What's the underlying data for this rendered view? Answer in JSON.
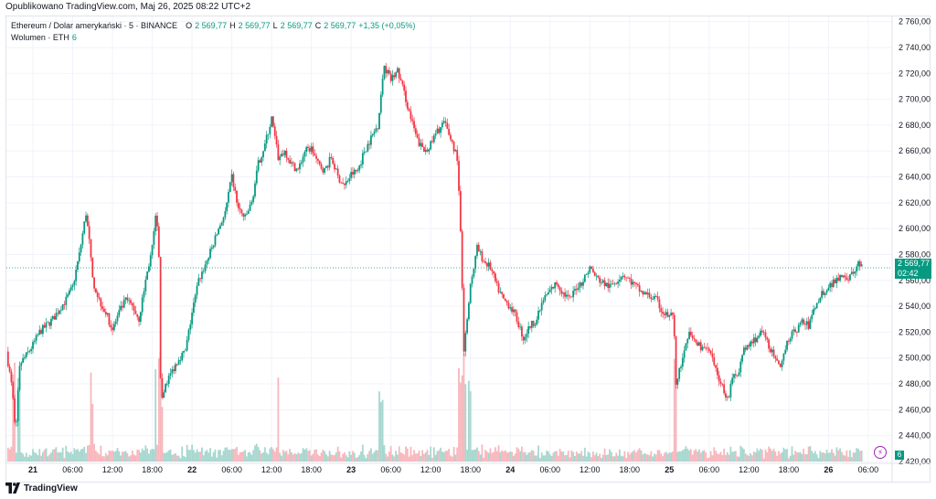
{
  "header": {
    "published": "Opublikowano TradingView.com, Maj 26, 2025 08:22 UTC+2"
  },
  "legend": {
    "symbol": "Ethereum / Dolar amerykański · 5 · BINANCE",
    "o_label": "O",
    "o_value": "2 569,77",
    "h_label": "H",
    "h_value": "2 569,77",
    "l_label": "L",
    "l_value": "2 569,77",
    "c_label": "C",
    "c_value": "2 569,77",
    "change": "+1,35 (+0,05%)",
    "volume_label": "Wolumen · ETH",
    "volume_value": "6"
  },
  "price_tag": {
    "price": "2 569,77",
    "countdown": "02:42"
  },
  "volume_tag": "6",
  "brand": {
    "name": "TradingView"
  },
  "colors": {
    "up": "#089981",
    "down": "#f23645",
    "up_vol": "#a7d7cf",
    "down_vol": "#f7b7bd",
    "grid": "#f0f3fa",
    "axis_text": "#131722"
  },
  "chart_data": {
    "type": "candlestick",
    "title": "Ethereum / Dolar amerykański · 5 · BINANCE",
    "y_axis": {
      "range": [
        2420,
        2764
      ],
      "ticks": [
        "2 420,00",
        "2 440,00",
        "2 460,00",
        "2 480,00",
        "2 500,00",
        "2 520,00",
        "2 540,00",
        "2 560,00",
        "2 580,00",
        "2 600,00",
        "2 620,00",
        "2 640,00",
        "2 660,00",
        "2 680,00",
        "2 700,00",
        "2 720,00",
        "2 740,00",
        "2 760,00"
      ],
      "tick_values": [
        2420,
        2440,
        2460,
        2480,
        2500,
        2520,
        2540,
        2560,
        2580,
        2600,
        2620,
        2640,
        2660,
        2680,
        2700,
        2720,
        2740,
        2760
      ]
    },
    "x_axis": {
      "labels": [
        "21",
        "06:00",
        "12:00",
        "18:00",
        "22",
        "06:00",
        "12:00",
        "18:00",
        "23",
        "06:00",
        "12:00",
        "18:00",
        "24",
        "06:00",
        "12:00",
        "18:00",
        "25",
        "06:00",
        "12:00",
        "18:00",
        "26",
        "06:00"
      ],
      "label_hours": [
        0,
        6,
        12,
        18,
        24,
        30,
        36,
        42,
        48,
        54,
        60,
        66,
        72,
        78,
        84,
        90,
        96,
        102,
        108,
        114,
        120,
        126
      ],
      "range_hours": [
        -4,
        129.6
      ]
    },
    "last_price": 2569.77,
    "price_path": [
      [
        -4,
        2505
      ],
      [
        -3.2,
        2478
      ],
      [
        -2.6,
        2445
      ],
      [
        -2,
        2495
      ],
      [
        -1,
        2502
      ],
      [
        0,
        2510
      ],
      [
        1,
        2520
      ],
      [
        2,
        2525
      ],
      [
        3,
        2530
      ],
      [
        4,
        2538
      ],
      [
        5,
        2545
      ],
      [
        6,
        2555
      ],
      [
        7,
        2580
      ],
      [
        8,
        2612
      ],
      [
        8.5,
        2590
      ],
      [
        9,
        2560
      ],
      [
        10,
        2545
      ],
      [
        11,
        2535
      ],
      [
        12,
        2522
      ],
      [
        13,
        2535
      ],
      [
        14,
        2545
      ],
      [
        15,
        2540
      ],
      [
        16,
        2530
      ],
      [
        17,
        2560
      ],
      [
        18,
        2585
      ],
      [
        18.6,
        2612
      ],
      [
        19,
        2580
      ],
      [
        19.3,
        2462
      ],
      [
        20,
        2480
      ],
      [
        21,
        2490
      ],
      [
        22,
        2500
      ],
      [
        23,
        2505
      ],
      [
        24,
        2535
      ],
      [
        25,
        2560
      ],
      [
        26,
        2572
      ],
      [
        27,
        2585
      ],
      [
        28,
        2600
      ],
      [
        29,
        2612
      ],
      [
        30,
        2640
      ],
      [
        31,
        2615
      ],
      [
        32,
        2608
      ],
      [
        33,
        2620
      ],
      [
        34,
        2650
      ],
      [
        35,
        2665
      ],
      [
        36,
        2685
      ],
      [
        37,
        2655
      ],
      [
        38,
        2660
      ],
      [
        39,
        2650
      ],
      [
        40,
        2645
      ],
      [
        41,
        2660
      ],
      [
        42,
        2662
      ],
      [
        43,
        2650
      ],
      [
        44,
        2645
      ],
      [
        45,
        2655
      ],
      [
        46,
        2640
      ],
      [
        47,
        2633
      ],
      [
        48,
        2642
      ],
      [
        49,
        2645
      ],
      [
        50,
        2660
      ],
      [
        51,
        2670
      ],
      [
        52,
        2680
      ],
      [
        53,
        2725
      ],
      [
        54,
        2715
      ],
      [
        55,
        2722
      ],
      [
        56,
        2705
      ],
      [
        57,
        2685
      ],
      [
        58,
        2668
      ],
      [
        59,
        2660
      ],
      [
        60,
        2665
      ],
      [
        61,
        2675
      ],
      [
        62,
        2682
      ],
      [
        63,
        2670
      ],
      [
        64,
        2655
      ],
      [
        64.5,
        2598
      ],
      [
        65,
        2505
      ],
      [
        66,
        2555
      ],
      [
        67,
        2585
      ],
      [
        68,
        2575
      ],
      [
        69,
        2570
      ],
      [
        70,
        2555
      ],
      [
        71,
        2545
      ],
      [
        72,
        2540
      ],
      [
        73,
        2530
      ],
      [
        74,
        2515
      ],
      [
        75,
        2525
      ],
      [
        76,
        2530
      ],
      [
        77,
        2545
      ],
      [
        78,
        2552
      ],
      [
        79,
        2558
      ],
      [
        80,
        2550
      ],
      [
        81,
        2545
      ],
      [
        82,
        2555
      ],
      [
        83,
        2560
      ],
      [
        84,
        2570
      ],
      [
        85,
        2562
      ],
      [
        86,
        2558
      ],
      [
        87,
        2555
      ],
      [
        88,
        2560
      ],
      [
        89,
        2565
      ],
      [
        90,
        2560
      ],
      [
        91,
        2555
      ],
      [
        92,
        2550
      ],
      [
        93,
        2548
      ],
      [
        94,
        2545
      ],
      [
        95,
        2535
      ],
      [
        96,
        2532
      ],
      [
        96.6,
        2535
      ],
      [
        97,
        2480
      ],
      [
        98,
        2500
      ],
      [
        99,
        2518
      ],
      [
        100,
        2512
      ],
      [
        101,
        2508
      ],
      [
        102,
        2505
      ],
      [
        103,
        2490
      ],
      [
        104,
        2478
      ],
      [
        104.8,
        2468
      ],
      [
        105.6,
        2485
      ],
      [
        106.4,
        2490
      ],
      [
        107.2,
        2505
      ],
      [
        108,
        2510
      ],
      [
        109,
        2515
      ],
      [
        110,
        2520
      ],
      [
        111,
        2510
      ],
      [
        112,
        2498
      ],
      [
        112.8,
        2490
      ],
      [
        113.6,
        2512
      ],
      [
        114.4,
        2518
      ],
      [
        115.2,
        2522
      ],
      [
        116,
        2528
      ],
      [
        117,
        2525
      ],
      [
        118,
        2540
      ],
      [
        119,
        2550
      ],
      [
        120,
        2555
      ],
      [
        121,
        2560
      ],
      [
        122,
        2565
      ],
      [
        123,
        2562
      ],
      [
        124,
        2567
      ],
      [
        124.6,
        2575
      ],
      [
        125,
        2569.77
      ]
    ]
  }
}
